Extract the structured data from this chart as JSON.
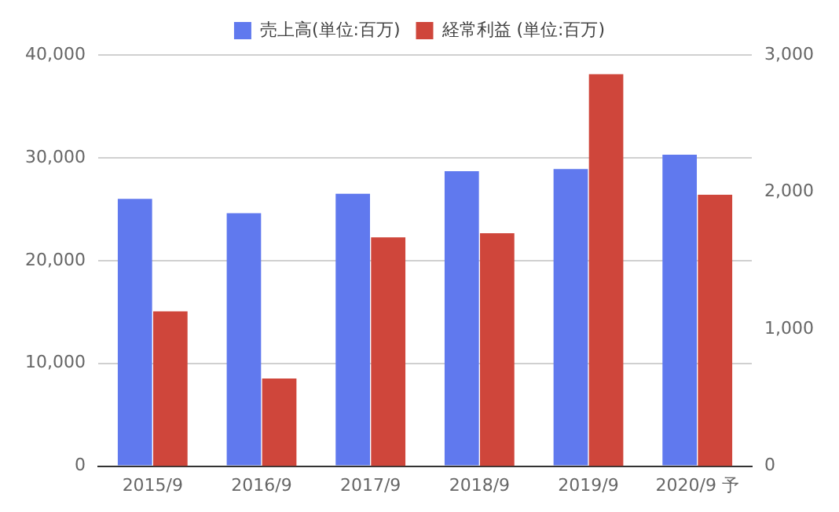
{
  "chart_data": {
    "type": "bar",
    "categories": [
      "2015/9",
      "2016/9",
      "2017/9",
      "2018/9",
      "2019/9",
      "2020/9 予"
    ],
    "series": [
      {
        "name": "売上高(単位:百万)",
        "color": "#6079ee",
        "values": [
          26000,
          24600,
          26500,
          28700,
          28900,
          30300
        ]
      },
      {
        "name": "経常利益 (単位:百万)",
        "color": "#cf463b",
        "values": [
          1130,
          640,
          1670,
          1700,
          2860,
          1980
        ],
        "axis": "y2"
      }
    ],
    "ylim": [
      0,
      40000
    ],
    "yticks": [
      {
        "value": 0,
        "label": "0"
      },
      {
        "value": 10000,
        "label": "10,000"
      },
      {
        "value": 20000,
        "label": "20,000"
      },
      {
        "value": 30000,
        "label": "30,000"
      },
      {
        "value": 40000,
        "label": "40,000"
      }
    ],
    "y2lim": [
      0,
      3000
    ],
    "y2ticks": [
      {
        "value": 0,
        "label": "0"
      },
      {
        "value": 1000,
        "label": "1,000"
      },
      {
        "value": 2000,
        "label": "2,000"
      },
      {
        "value": 3000,
        "label": "3,000"
      }
    ],
    "grid": "y",
    "legend": "top"
  }
}
